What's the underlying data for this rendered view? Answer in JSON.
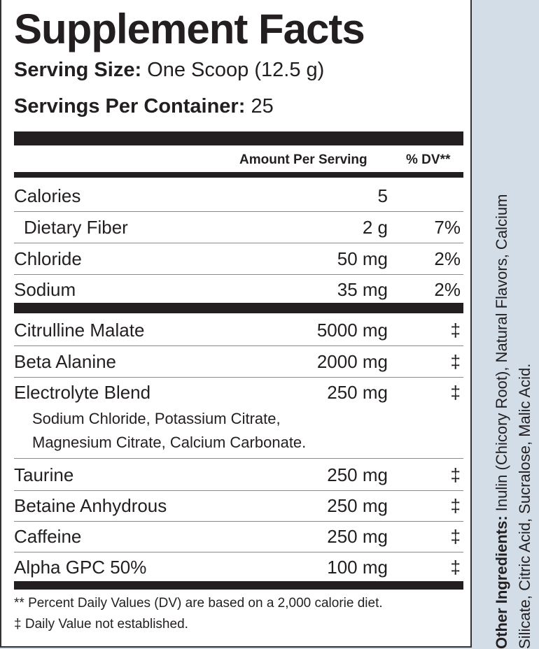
{
  "title": "Supplement Facts",
  "serving_size": {
    "label": "Serving Size:",
    "value": "One Scoop (12.5 g)"
  },
  "servings_per_container": {
    "label": "Servings Per Container:",
    "value": "25"
  },
  "header": {
    "amount": "Amount Per Serving",
    "dv": "% DV**"
  },
  "rows": [
    {
      "name": "Calories",
      "amount": "5",
      "dv": ""
    },
    {
      "name": "Dietary Fiber",
      "amount": "2 g",
      "dv": "7%"
    },
    {
      "name": "Chloride",
      "amount": "50 mg",
      "dv": "2%"
    },
    {
      "name": "Sodium",
      "amount": "35 mg",
      "dv": "2%"
    },
    {
      "name": "Citrulline Malate",
      "amount": "5000 mg",
      "dv": "‡"
    },
    {
      "name": "Beta Alanine",
      "amount": "2000 mg",
      "dv": "‡"
    },
    {
      "name": "Electrolyte Blend",
      "amount": "250 mg",
      "dv": "‡"
    },
    {
      "name": "Taurine",
      "amount": "250 mg",
      "dv": "‡"
    },
    {
      "name": "Betaine Anhydrous",
      "amount": "250 mg",
      "dv": "‡"
    },
    {
      "name": "Caffeine",
      "amount": "250 mg",
      "dv": "‡"
    },
    {
      "name": "Alpha GPC 50%",
      "amount": "100 mg",
      "dv": "‡"
    }
  ],
  "blend_detail": [
    "Sodium Chloride, Potassium Citrate,",
    "Magnesium Citrate, Calcium Carbonate."
  ],
  "footnotes": [
    "** Percent Daily Values (DV) are based on a 2,000 calorie diet.",
    "‡ Daily Value not established."
  ],
  "other_ingredients": {
    "label": "Other Ingredients:",
    "value": "Inulin (Chicory Root), Natural Flavors, Calcium Silicate, Citric Acid, Sucralose, Malic Acid."
  },
  "colors": {
    "background": "#d3dde7",
    "text": "#231f20"
  }
}
